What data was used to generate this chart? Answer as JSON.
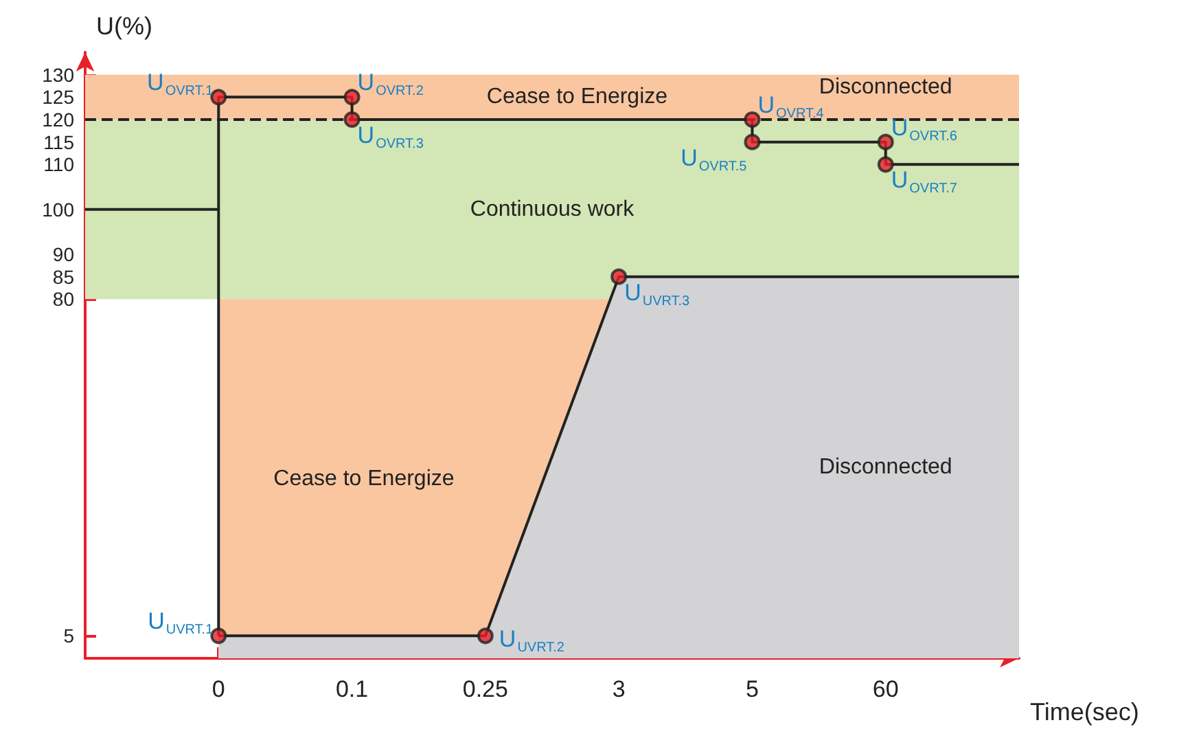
{
  "chart_data": {
    "type": "line",
    "xlabel": "Time(sec)",
    "ylabel": "U(%)",
    "categories": [
      null,
      "0",
      "0.1",
      "0.25",
      "3",
      "5",
      "60",
      null
    ],
    "ylim": [
      0,
      135
    ],
    "yticks": [
      5,
      80,
      85,
      90,
      100,
      110,
      115,
      120,
      125,
      130
    ],
    "series": [
      {
        "type": "area",
        "name": "Disconnected",
        "color": "#d3d3d5",
        "values": [
          null,
          5,
          5,
          5,
          85,
          85,
          85,
          85
        ]
      },
      {
        "type": "step",
        "color": "#222222",
        "values": [
          100,
          125,
          120,
          120,
          120,
          115,
          110,
          110
        ]
      },
      {
        "color": "#222222",
        "x": [
          "0",
          "0"
        ],
        "values": [
          5,
          100
        ]
      },
      {
        "type": "scatter",
        "marker": "circle",
        "color": "#e8202a",
        "x": [
          "0",
          "0.1",
          "0.1",
          "5",
          "5",
          "60",
          "60",
          "0",
          "0.25",
          "3"
        ],
        "values": [
          125,
          125,
          120,
          120,
          115,
          115,
          110,
          5,
          5,
          85
        ]
      }
    ],
    "bands": [
      {
        "axis": "x",
        "from": "0",
        "to": "60",
        "label": "Cease to Energize",
        "color": "#f9c6a0"
      },
      {
        "axis": "y",
        "from": 80,
        "to": 120,
        "label": "Continuous work",
        "color": "#d3e6b5"
      },
      {
        "axis": "y",
        "from": 120,
        "to": 130,
        "label": "Cease to Energize",
        "color": "#f9c6a0"
      }
    ],
    "ref_lines": [
      {
        "axis": "y",
        "value": 120,
        "line_style": "dashed",
        "color": "#222222"
      }
    ],
    "annotations": [
      {
        "text": "U$_{OVRT.1}$",
        "x": "0",
        "y": 125
      },
      {
        "text": "U$_{OVRT.2}$",
        "x": "0.1",
        "y": 125
      },
      {
        "text": "U$_{OVRT.3}$",
        "x": "0.1",
        "y": 120
      },
      {
        "text": "U$_{OVRT.4}$",
        "x": "5",
        "y": 120
      },
      {
        "text": "U$_{OVRT.5}$",
        "x": "5",
        "y": 115
      },
      {
        "text": "U$_{OVRT.6}$",
        "x": "60",
        "y": 115
      },
      {
        "text": "U$_{OVRT.7}$",
        "x": "60",
        "y": 110
      },
      {
        "text": "U$_{UVRT.1}$",
        "x": "0",
        "y": 5
      },
      {
        "text": "U$_{UVRT.2}$",
        "x": "0.25",
        "y": 5
      },
      {
        "text": "U$_{UVRT.3}$",
        "x": "3",
        "y": 85
      },
      "Disconnected"
    ]
  }
}
